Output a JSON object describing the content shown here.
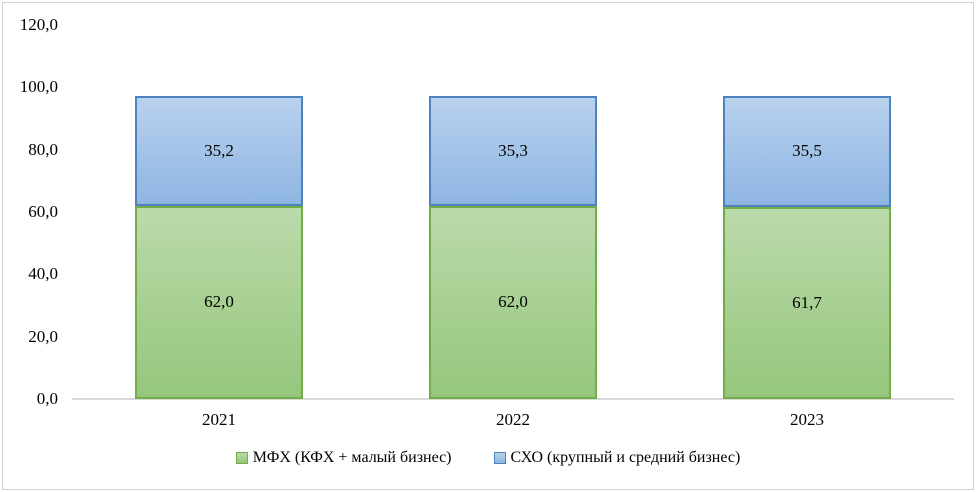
{
  "chart_data": {
    "type": "bar",
    "stacked": true,
    "title": "",
    "xlabel": "",
    "ylabel": "",
    "categories": [
      "2021",
      "2022",
      "2023"
    ],
    "series": [
      {
        "name": "МФХ (КФХ + малый бизнес)",
        "values": [
          62.0,
          62.0,
          61.7
        ],
        "labels": [
          "62,0",
          "62,0",
          "61,7"
        ],
        "fill_top": "#bbdaab",
        "fill_bottom": "#96c67c",
        "border": "#70ad47"
      },
      {
        "name": "СХО (крупный и средний бизнес)",
        "values": [
          35.2,
          35.3,
          35.5
        ],
        "labels": [
          "35,2",
          "35,3",
          "35,5"
        ],
        "fill_top": "#b9d2ee",
        "fill_bottom": "#8eb5e2",
        "border": "#4e81bd"
      }
    ],
    "ylim": [
      0,
      120
    ],
    "ytick_values": [
      0,
      20,
      40,
      60,
      80,
      100,
      120
    ],
    "ytick_labels": [
      "0,0",
      "20,0",
      "40,0",
      "60,0",
      "80,0",
      "100,0",
      "120,0"
    ],
    "grid": false,
    "legend_position": "bottom",
    "axis_line_color": "#d9d9d9",
    "frame_color": "#d3d3d3",
    "decimal_separator": ","
  }
}
